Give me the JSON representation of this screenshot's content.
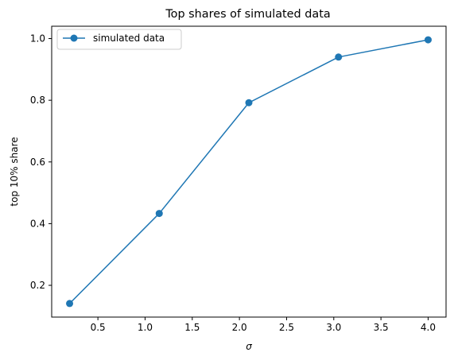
{
  "chart_data": {
    "type": "line",
    "title": "Top shares of simulated data",
    "xlabel": "σ",
    "ylabel": "top 10% share",
    "xlim": [
      0.01,
      4.19
    ],
    "ylim": [
      0.097,
      1.04
    ],
    "xticks": [
      0.5,
      1.0,
      1.5,
      2.0,
      2.5,
      3.0,
      3.5,
      4.0
    ],
    "xtick_labels": [
      "0.5",
      "1.0",
      "1.5",
      "2.0",
      "2.5",
      "3.0",
      "3.5",
      "4.0"
    ],
    "yticks": [
      0.2,
      0.4,
      0.6,
      0.8,
      1.0
    ],
    "ytick_labels": [
      "0.2",
      "0.4",
      "0.6",
      "0.8",
      "1.0"
    ],
    "grid": false,
    "legend_position": "upper-left",
    "series": [
      {
        "name": "simulated data",
        "color": "#1f77b4",
        "marker": "circle",
        "x": [
          0.2,
          1.15,
          2.1,
          3.05,
          4.0
        ],
        "y": [
          0.141,
          0.433,
          0.792,
          0.94,
          0.996
        ]
      }
    ]
  }
}
